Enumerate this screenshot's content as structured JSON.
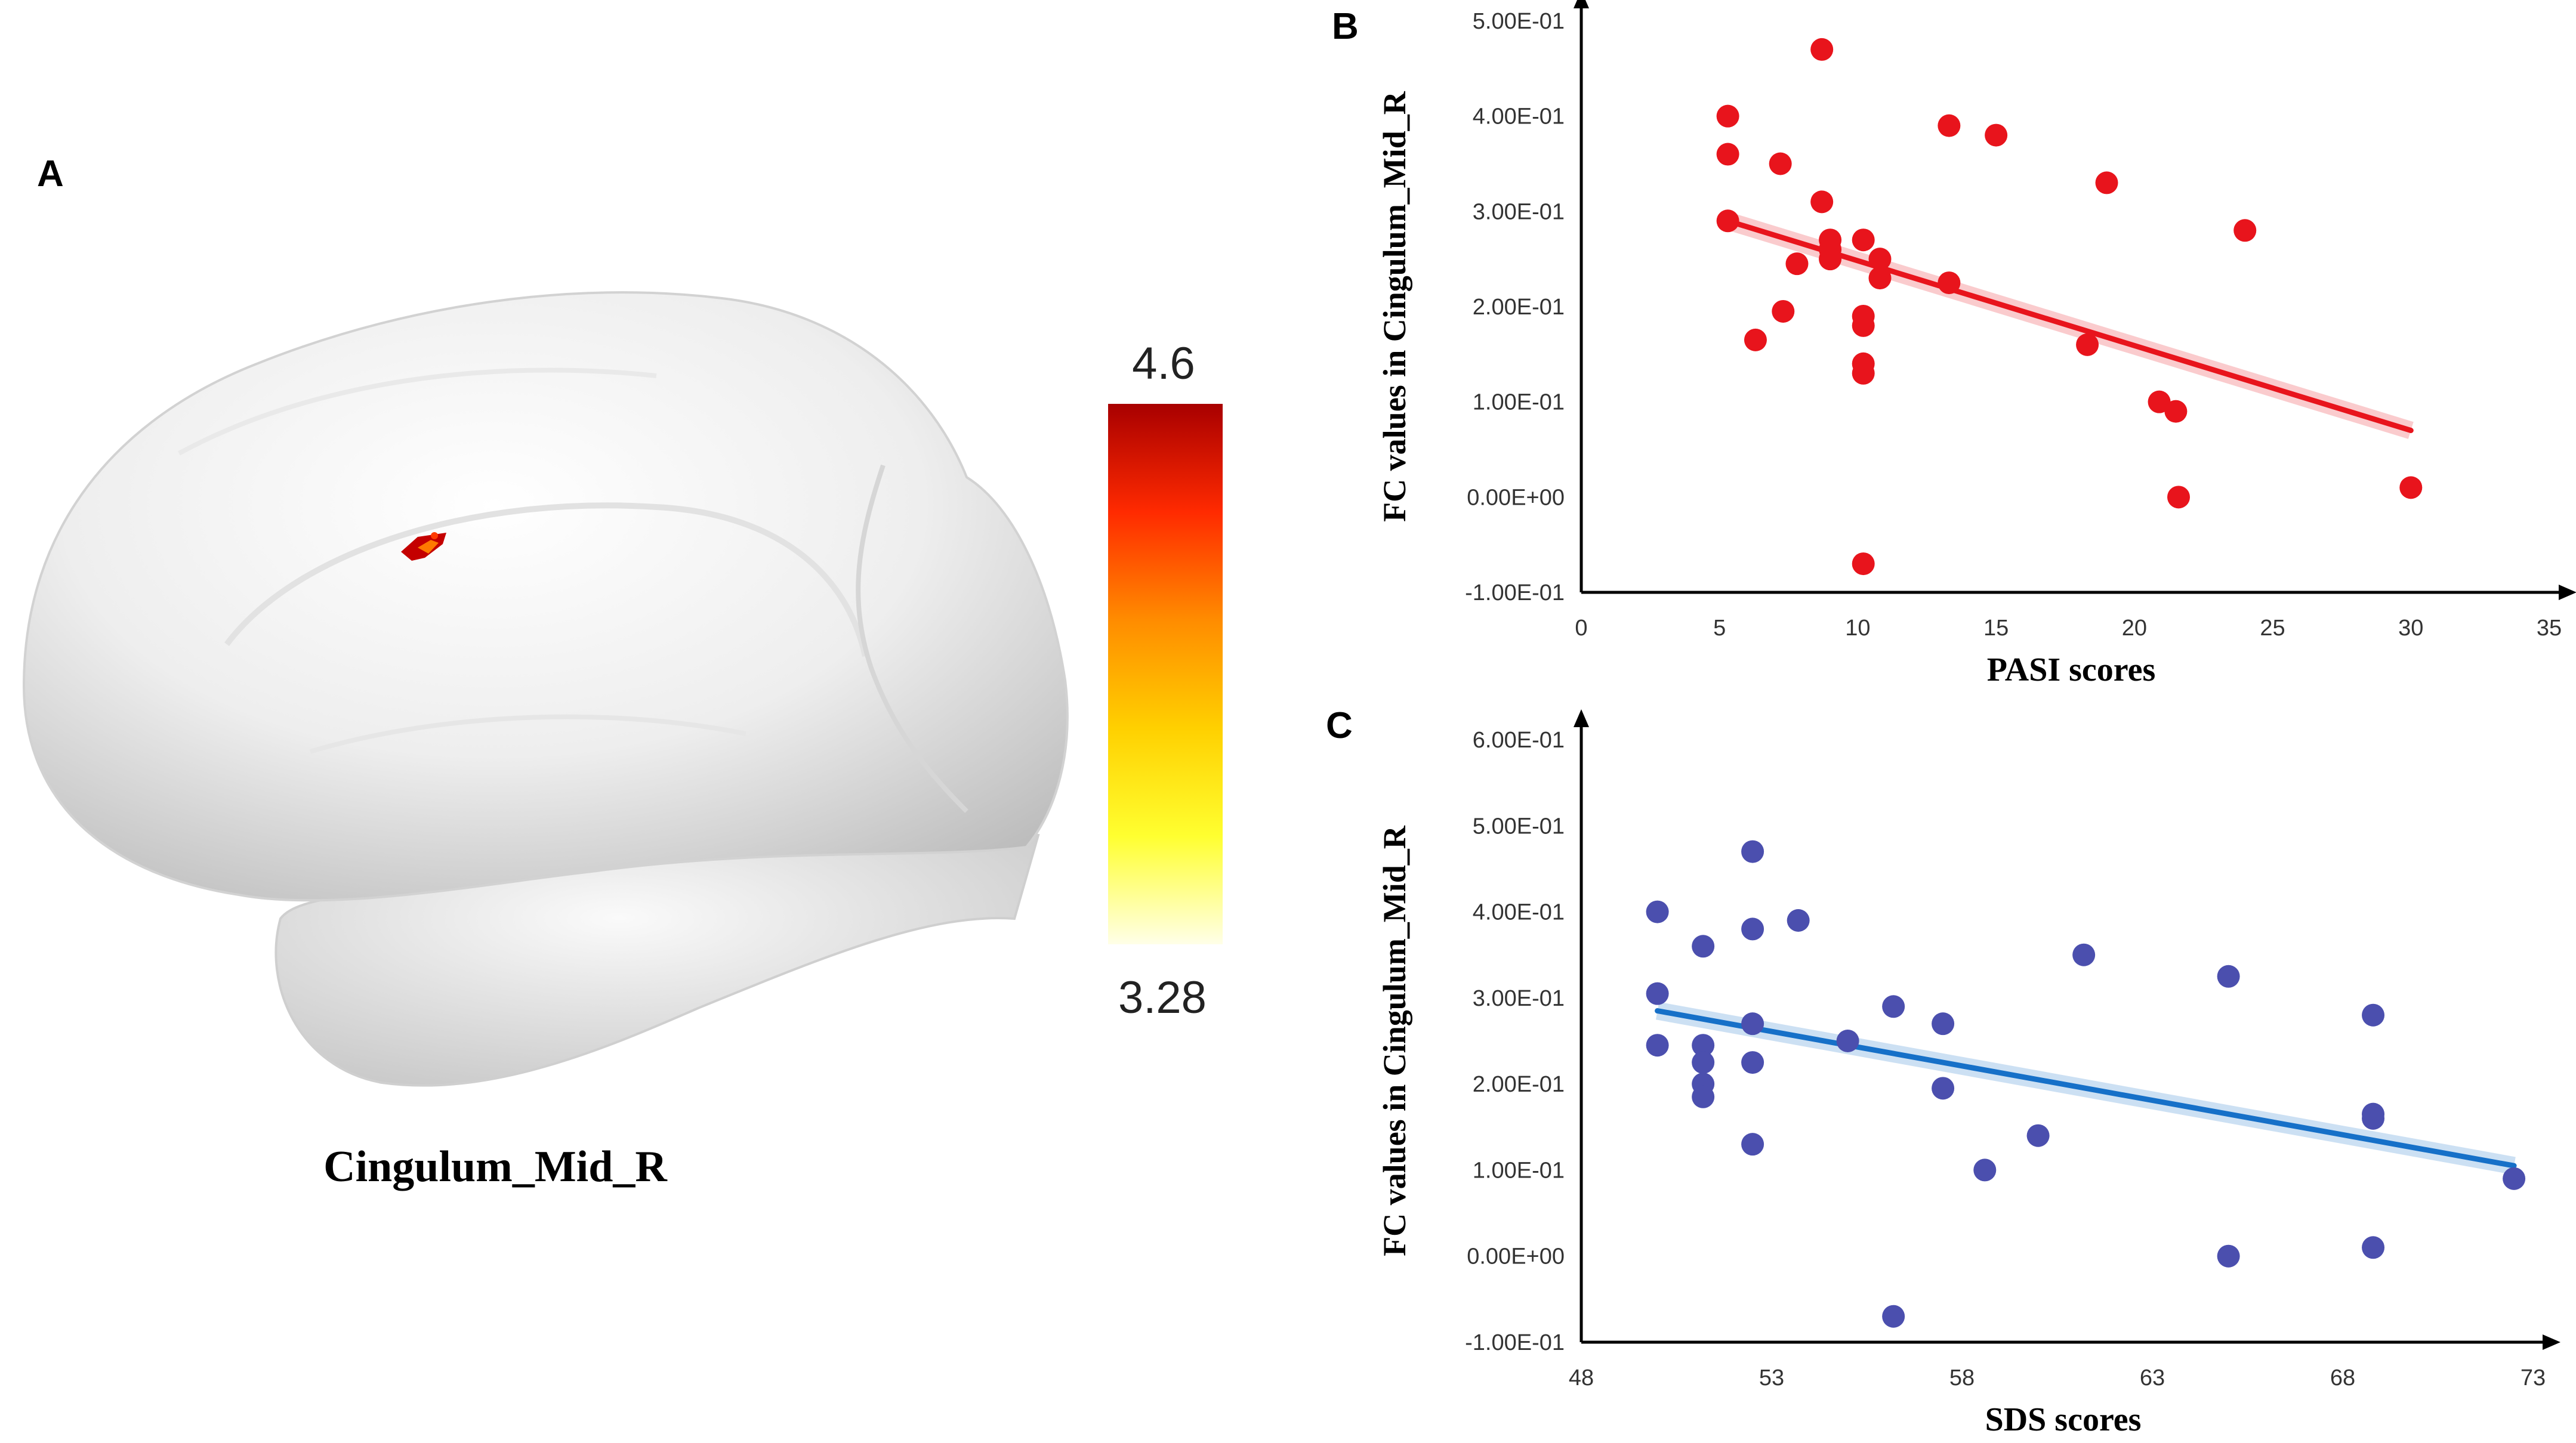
{
  "panels": {
    "a": {
      "label": "A",
      "region_label": "Cingulum_Mid_R",
      "colorbar": {
        "max_label": "4.6",
        "min_label": "3.28",
        "colors": [
          "#a80000",
          "#ff2a00",
          "#ff8c00",
          "#ffd000",
          "#ffff30",
          "#ffffe8"
        ]
      }
    },
    "b": {
      "label": "B"
    },
    "c": {
      "label": "C"
    }
  },
  "chart_data": [
    {
      "type": "scatter",
      "panel": "B",
      "xlabel": "PASI scores",
      "ylabel": "FC values in Cingulum_Mid_R",
      "xlim": [
        0,
        35
      ],
      "ylim": [
        -0.1,
        0.5
      ],
      "x_ticks": [
        0,
        5,
        10,
        15,
        20,
        25,
        30,
        35
      ],
      "y_ticks": [
        -0.1,
        0.0,
        0.1,
        0.2,
        0.3,
        0.4,
        0.5
      ],
      "x_tick_labels": [
        "0",
        "5",
        "10",
        "15",
        "20",
        "25",
        "30",
        "35"
      ],
      "y_tick_labels": [
        "-1.00E-01",
        "0.00E+00",
        "1.00E-01",
        "2.00E-01",
        "3.00E-01",
        "4.00E-01",
        "5.00E-01"
      ],
      "point_color": "#e8141c",
      "line_color": "#e8141c",
      "points": [
        [
          8.7,
          0.47
        ],
        [
          5.3,
          0.4
        ],
        [
          5.3,
          0.36
        ],
        [
          7.2,
          0.35
        ],
        [
          13.3,
          0.39
        ],
        [
          15.0,
          0.38
        ],
        [
          19.0,
          0.33
        ],
        [
          8.7,
          0.31
        ],
        [
          5.3,
          0.29
        ],
        [
          9.0,
          0.27
        ],
        [
          9.0,
          0.26
        ],
        [
          10.2,
          0.27
        ],
        [
          9.0,
          0.25
        ],
        [
          7.8,
          0.245
        ],
        [
          10.8,
          0.25
        ],
        [
          10.8,
          0.23
        ],
        [
          13.3,
          0.225
        ],
        [
          7.3,
          0.195
        ],
        [
          10.2,
          0.19
        ],
        [
          10.2,
          0.18
        ],
        [
          6.3,
          0.165
        ],
        [
          10.2,
          0.14
        ],
        [
          10.2,
          0.13
        ],
        [
          18.3,
          0.16
        ],
        [
          20.9,
          0.1
        ],
        [
          21.5,
          0.09
        ],
        [
          24.0,
          0.28
        ],
        [
          21.6,
          0.0
        ],
        [
          30.0,
          0.01
        ],
        [
          10.2,
          -0.07
        ]
      ],
      "fit_line": {
        "x": [
          5.3,
          30.0
        ],
        "y": [
          0.29,
          0.07
        ]
      }
    },
    {
      "type": "scatter",
      "panel": "C",
      "xlabel": "SDS scores",
      "ylabel": "FC values in Cingulum_Mid_R",
      "xlim": [
        48,
        73
      ],
      "ylim": [
        -0.1,
        0.6
      ],
      "x_ticks": [
        48,
        53,
        58,
        63,
        68,
        73
      ],
      "y_ticks": [
        -0.1,
        0.0,
        0.1,
        0.2,
        0.3,
        0.4,
        0.5,
        0.6
      ],
      "x_tick_labels": [
        "48",
        "53",
        "58",
        "63",
        "68",
        "73"
      ],
      "y_tick_labels": [
        "-1.00E-01",
        "0.00E+00",
        "1.00E-01",
        "2.00E-01",
        "3.00E-01",
        "4.00E-01",
        "5.00E-01",
        "6.00E-01"
      ],
      "point_color": "#4b4fae",
      "line_color": "#1670c8",
      "points": [
        [
          50,
          0.4
        ],
        [
          50,
          0.305
        ],
        [
          50,
          0.245
        ],
        [
          51.2,
          0.36
        ],
        [
          51.2,
          0.245
        ],
        [
          51.2,
          0.225
        ],
        [
          51.2,
          0.2
        ],
        [
          51.2,
          0.185
        ],
        [
          52.5,
          0.47
        ],
        [
          52.5,
          0.38
        ],
        [
          52.5,
          0.27
        ],
        [
          52.5,
          0.225
        ],
        [
          52.5,
          0.13
        ],
        [
          53.7,
          0.39
        ],
        [
          55.0,
          0.25
        ],
        [
          56.2,
          0.29
        ],
        [
          56.2,
          -0.07
        ],
        [
          57.5,
          0.27
        ],
        [
          57.5,
          0.195
        ],
        [
          58.6,
          0.1
        ],
        [
          60.0,
          0.14
        ],
        [
          61.2,
          0.35
        ],
        [
          65.0,
          0.325
        ],
        [
          65.0,
          0.0
        ],
        [
          68.8,
          0.28
        ],
        [
          68.8,
          0.165
        ],
        [
          68.8,
          0.16
        ],
        [
          68.8,
          0.01
        ],
        [
          72.5,
          0.09
        ]
      ],
      "fit_line": {
        "x": [
          50.0,
          72.5
        ],
        "y": [
          0.285,
          0.105
        ]
      }
    }
  ]
}
